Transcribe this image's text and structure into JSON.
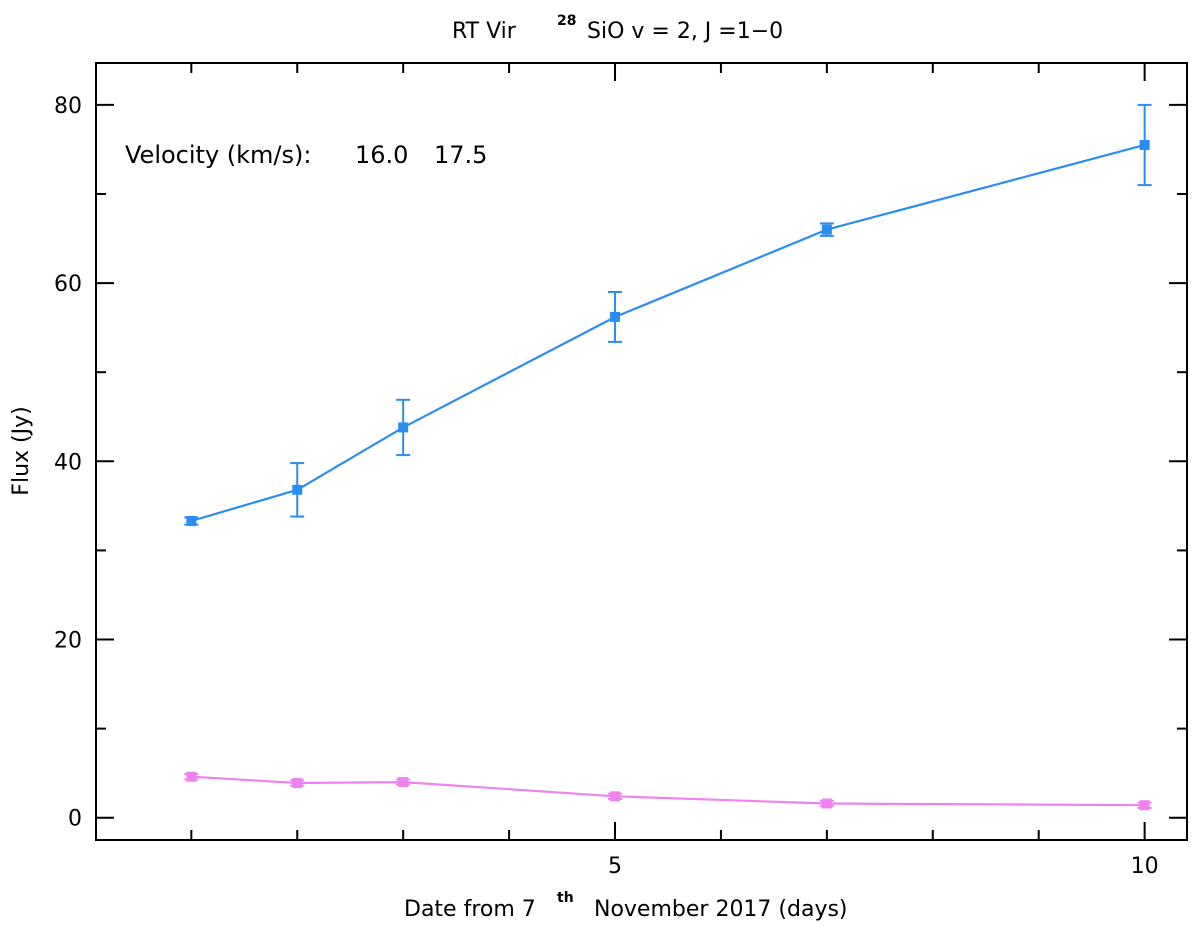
{
  "chart_data": {
    "type": "line",
    "title": {
      "prefix": "RT Vir",
      "superscript": "28",
      "main": "SiO v = 2, J =1−0"
    },
    "xlabel": {
      "prefix": "Date from 7",
      "superscript": "th",
      "suffix": "November 2017 (days)"
    },
    "ylabel": "Flux (Jy)",
    "xlim": [
      0.1,
      10.4
    ],
    "ylim": [
      -2.5,
      84.7
    ],
    "x_ticks": [
      {
        "value": 5,
        "label": "5"
      },
      {
        "value": 10,
        "label": "10"
      }
    ],
    "y_ticks": [
      {
        "value": 0,
        "label": "0"
      },
      {
        "value": 20,
        "label": "20"
      },
      {
        "value": 40,
        "label": "40"
      },
      {
        "value": 60,
        "label": "60"
      },
      {
        "value": 80,
        "label": "80"
      }
    ],
    "x_minor_step": 1,
    "y_minor_step": 10,
    "legend": {
      "label": "Velocity (km/s):",
      "placement": "top-left"
    },
    "series": [
      {
        "name": "16.0",
        "color": "#2b8df0",
        "x": [
          1,
          2,
          3,
          5,
          7,
          10
        ],
        "y": [
          33.3,
          36.8,
          43.8,
          56.2,
          66.0,
          75.5
        ],
        "yerr": [
          0.4,
          3.0,
          3.1,
          2.8,
          0.7,
          4.5
        ]
      },
      {
        "name": "17.5",
        "color": "#ee82ee",
        "x": [
          1,
          2,
          3,
          5,
          7,
          10
        ],
        "y": [
          4.6,
          3.9,
          4.0,
          2.4,
          1.6,
          1.4
        ],
        "yerr": [
          0.3,
          0.3,
          0.3,
          0.3,
          0.3,
          0.3
        ]
      }
    ]
  }
}
